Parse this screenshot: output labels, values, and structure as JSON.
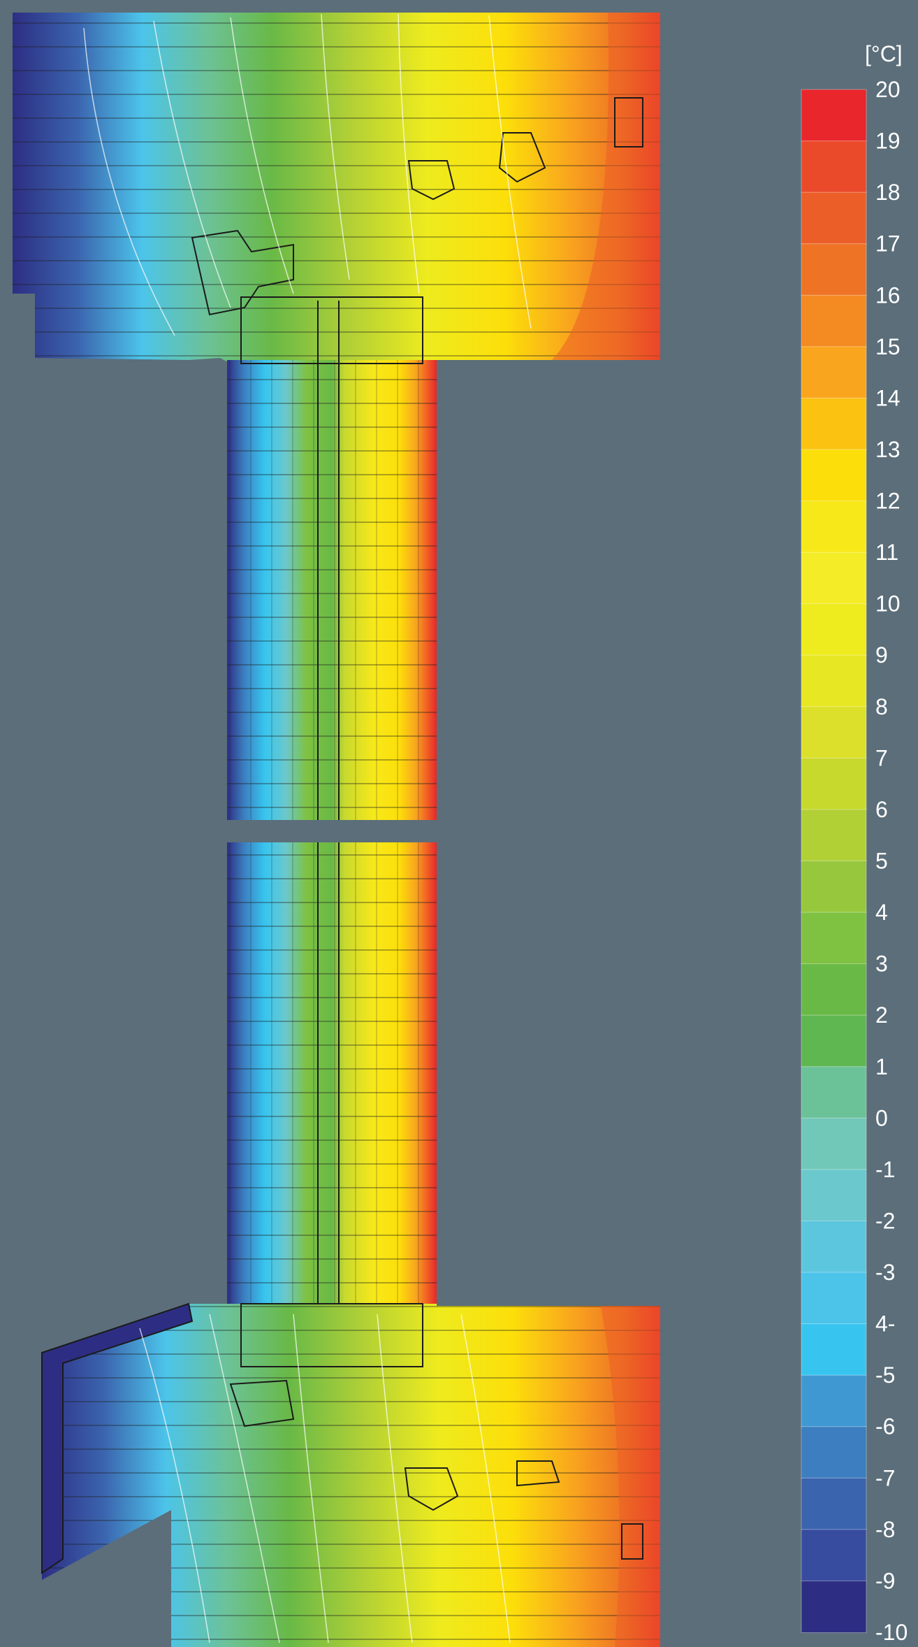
{
  "legend": {
    "unit": "[°C]",
    "ticks": [
      "20",
      "19",
      "18",
      "17",
      "16",
      "15",
      "14",
      "13",
      "12",
      "11",
      "10",
      "9",
      "8",
      "7",
      "6",
      "5",
      "4",
      "3",
      "2",
      "1",
      "0",
      "-1",
      "-2",
      "-3",
      "4-",
      "-5",
      "-6",
      "-7",
      "-8",
      "-9",
      "-10"
    ],
    "colors": [
      "#e8262b",
      "#ea4a2a",
      "#ec5e27",
      "#ee7325",
      "#f48a22",
      "#f9a51e",
      "#fbc212",
      "#fcdf0a",
      "#f7e81a",
      "#f4ec26",
      "#eeeb1e",
      "#e7e823",
      "#dce02a",
      "#c8d92e",
      "#b1d036",
      "#97c73d",
      "#7fc241",
      "#69b947",
      "#5fb751",
      "#6cc298",
      "#71c7b8",
      "#6bc8cc",
      "#5cc6de",
      "#4cc4ea",
      "#37c5ef",
      "#3f98d2",
      "#3c7ebf",
      "#3b64ae",
      "#374c9f",
      "#2d2e83"
    ]
  },
  "colors": {
    "background": "#5b6e7a",
    "cold": "#2d2e83",
    "warm": "#e8262b"
  }
}
